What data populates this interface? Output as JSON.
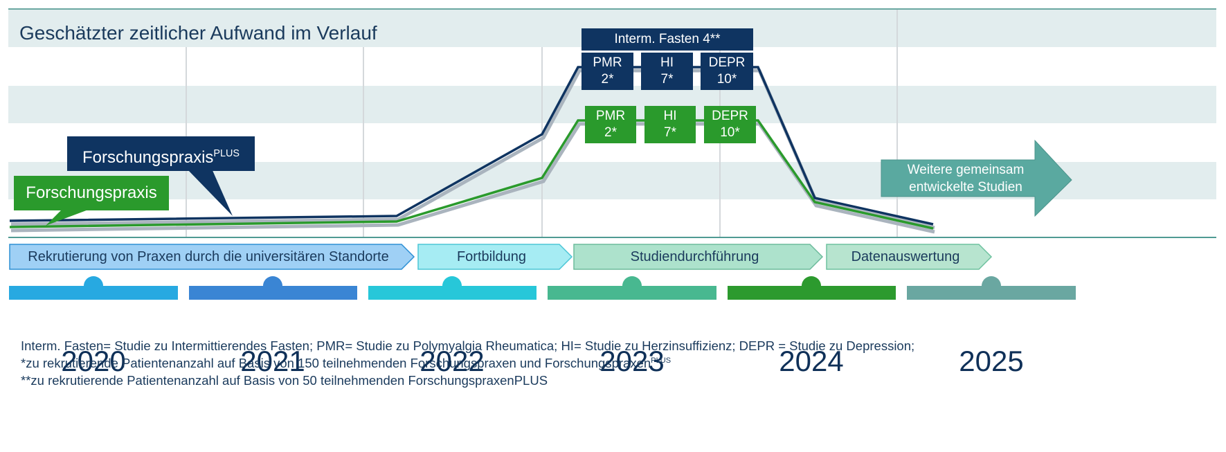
{
  "title": "Geschätzter zeitlicher Aufwand im Verlauf",
  "labels": {
    "forschungspraxis_plus": "Forschungspraxis",
    "forschungspraxis_plus_sup": "PLUS",
    "forschungspraxis": "Forschungspraxis"
  },
  "studies_plus": {
    "header": "Interm. Fasten 4**",
    "boxes": [
      {
        "name": "PMR",
        "value": "2*"
      },
      {
        "name": "HI",
        "value": "7*"
      },
      {
        "name": "DEPR",
        "value": "10*"
      }
    ]
  },
  "studies_standard": {
    "boxes": [
      {
        "name": "PMR",
        "value": "2*"
      },
      {
        "name": "HI",
        "value": "7*"
      },
      {
        "name": "DEPR",
        "value": "10*"
      }
    ]
  },
  "further": {
    "line1": "Weitere gemeinsam",
    "line2": "entwickelte Studien"
  },
  "phases": [
    "Rekrutierung von Praxen durch die universitären Standorte",
    "Fortbildung",
    "Studiendurchführung",
    "Datenauswertung"
  ],
  "years": [
    "2020",
    "2021",
    "2022",
    "2023",
    "2024",
    "2025"
  ],
  "footnotes": {
    "line1": "Interm. Fasten= Studie zu Intermittierendes Fasten; PMR= Studie zu Polymyalgia Rheumatica; HI= Studie zu Herzinsuffizienz; DEPR = Studie zu Depression;",
    "line2": "*zu rekrutierende Patientenanzahl auf Basis von 150 teilnehmenden Forschungspraxen und Forschungspraxen",
    "line2_sup": "PLUS",
    "line3": "**zu rekrutierende Patientenanzahl auf Basis von 50 teilnehmenden ForschungspraxenPLUS"
  },
  "colors": {
    "navy": "#0f3461",
    "green": "#2a9a2c",
    "band": "#e2edee",
    "teal_arrow": "#5aa9a0",
    "year_bars": [
      "#27a9e1",
      "#3a85d4",
      "#27c7d9",
      "#48b890",
      "#2c9a2e",
      "#6aa7a1"
    ]
  }
}
